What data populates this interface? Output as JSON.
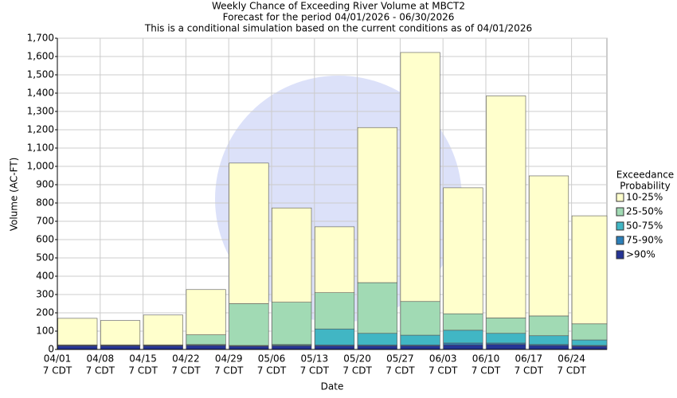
{
  "chart_data": {
    "type": "stacked_bar",
    "title": [
      "Weekly Chance of Exceeding River Volume at MBCT2",
      "Forecast for the period 04/01/2026 - 06/30/2026",
      "This is a conditional simulation based on the current conditions as of 04/01/2026"
    ],
    "x_label": "Date",
    "y_label": "Volume (AC-FT)",
    "legend_title": [
      "Exceedance",
      "Probability"
    ],
    "categories": [
      [
        "04/01",
        "7 CDT"
      ],
      [
        "04/08",
        "7 CDT"
      ],
      [
        "04/15",
        "7 CDT"
      ],
      [
        "04/22",
        "7 CDT"
      ],
      [
        "04/29",
        "7 CDT"
      ],
      [
        "05/06",
        "7 CDT"
      ],
      [
        "05/13",
        "7 CDT"
      ],
      [
        "05/20",
        "7 CDT"
      ],
      [
        "05/27",
        "7 CDT"
      ],
      [
        "06/03",
        "7 CDT"
      ],
      [
        "06/10",
        "7 CDT"
      ],
      [
        "06/17",
        "7 CDT"
      ],
      [
        "06/24",
        "7 CDT"
      ]
    ],
    "series": [
      {
        "name": ">90%",
        "color": "#253494",
        "values": [
          20,
          20,
          20,
          22,
          18,
          20,
          20,
          20,
          20,
          25,
          28,
          22,
          18
        ]
      },
      {
        "name": "75-90%",
        "color": "#2c7fb8",
        "values": [
          2,
          2,
          2,
          2,
          2,
          3,
          5,
          5,
          5,
          10,
          7,
          5,
          4
        ]
      },
      {
        "name": "50-75%",
        "color": "#41b6c4",
        "values": [
          1,
          1,
          1,
          3,
          2,
          4,
          87,
          63,
          53,
          70,
          53,
          48,
          30
        ]
      },
      {
        "name": "25-50%",
        "color": "#a1dab4",
        "values": [
          2,
          2,
          2,
          53,
          228,
          231,
          198,
          277,
          184,
          90,
          84,
          108,
          88
        ]
      },
      {
        "name": "10-25%",
        "color": "#ffffcc",
        "values": [
          145,
          133,
          163,
          247,
          768,
          515,
          360,
          847,
          1360,
          688,
          1213,
          765,
          590
        ]
      }
    ],
    "ylim": [
      0,
      1700
    ],
    "yticks": [
      0,
      100,
      200,
      300,
      400,
      500,
      600,
      700,
      800,
      900,
      {
        "value": 1000,
        "label": "1,000"
      },
      {
        "value": 1100,
        "label": "1,100"
      },
      {
        "value": 1200,
        "label": "1,200"
      },
      {
        "value": 1300,
        "label": "1,300"
      },
      {
        "value": 1400,
        "label": "1,400"
      },
      {
        "value": 1500,
        "label": "1,500"
      },
      {
        "value": 1600,
        "label": "1,600"
      },
      {
        "value": 1700,
        "label": "1,700"
      }
    ],
    "grid": true
  }
}
